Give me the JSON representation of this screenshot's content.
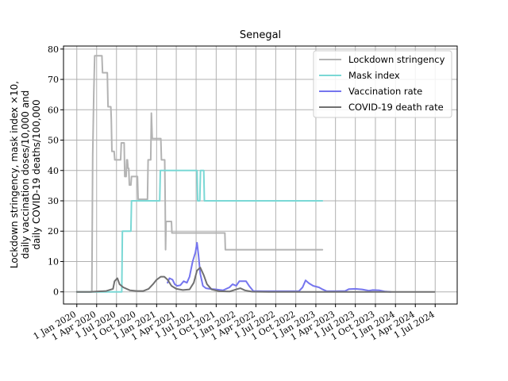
{
  "chart_data": {
    "type": "line",
    "title": "Senegal",
    "ylabel_lines": [
      "Lockdown stringency, mask index ×10,",
      "daily vaccination doses/10,000 and",
      "daily COVID-19 deaths/100,000"
    ],
    "xlabel": "",
    "ylim": [
      -4,
      81
    ],
    "xlim": [
      "2019-11-01",
      "2024-10-10"
    ],
    "yticks": [
      0,
      10,
      20,
      30,
      40,
      50,
      60,
      70,
      80
    ],
    "xticks": [
      {
        "date": "2020-01-01",
        "label": "1 Jan 2020"
      },
      {
        "date": "2020-04-01",
        "label": "1 Apr 2020"
      },
      {
        "date": "2020-07-01",
        "label": "1 Jul 2020"
      },
      {
        "date": "2020-10-01",
        "label": "1 Oct 2020"
      },
      {
        "date": "2021-01-01",
        "label": "1 Jan 2021"
      },
      {
        "date": "2021-04-01",
        "label": "1 Apr 2021"
      },
      {
        "date": "2021-07-01",
        "label": "1 Jul 2021"
      },
      {
        "date": "2021-10-01",
        "label": "1 Oct 2021"
      },
      {
        "date": "2022-01-01",
        "label": "1 Jan 2022"
      },
      {
        "date": "2022-04-01",
        "label": "1 Apr 2022"
      },
      {
        "date": "2022-07-01",
        "label": "1 Jul 2022"
      },
      {
        "date": "2022-10-01",
        "label": "1 Oct 2022"
      },
      {
        "date": "2023-01-01",
        "label": "1 Jan 2023"
      },
      {
        "date": "2023-04-01",
        "label": "1 Apr 2023"
      },
      {
        "date": "2023-07-01",
        "label": "1 Jul 2023"
      },
      {
        "date": "2023-10-01",
        "label": "1 Oct 2023"
      },
      {
        "date": "2024-01-01",
        "label": "1 Jan 2024"
      },
      {
        "date": "2024-04-01",
        "label": "1 Apr 2024"
      },
      {
        "date": "2024-07-01",
        "label": "1 Jul 2024"
      }
    ],
    "grid": true,
    "legend_position": "top-right",
    "series": [
      {
        "name": "Lockdown stringency",
        "color": "#b3b3b3",
        "step": true,
        "points": [
          [
            "2020-01-01",
            0
          ],
          [
            "2020-03-10",
            0
          ],
          [
            "2020-03-14",
            45
          ],
          [
            "2020-03-19",
            66
          ],
          [
            "2020-03-23",
            77.8
          ],
          [
            "2020-04-25",
            77.8
          ],
          [
            "2020-04-28",
            72.2
          ],
          [
            "2020-05-20",
            72.2
          ],
          [
            "2020-05-23",
            61
          ],
          [
            "2020-06-05",
            61
          ],
          [
            "2020-06-07",
            57
          ],
          [
            "2020-06-10",
            46.3
          ],
          [
            "2020-06-20",
            46.3
          ],
          [
            "2020-06-23",
            43.5
          ],
          [
            "2020-07-20",
            43.5
          ],
          [
            "2020-07-23",
            49.1
          ],
          [
            "2020-08-05",
            49.1
          ],
          [
            "2020-08-08",
            38
          ],
          [
            "2020-08-14",
            38
          ],
          [
            "2020-08-17",
            43.5
          ],
          [
            "2020-08-20",
            43.5
          ],
          [
            "2020-08-23",
            40.7
          ],
          [
            "2020-08-26",
            40.7
          ],
          [
            "2020-08-29",
            35.2
          ],
          [
            "2020-09-05",
            35.2
          ],
          [
            "2020-09-08",
            38
          ],
          [
            "2020-10-05",
            38
          ],
          [
            "2020-10-08",
            30.5
          ],
          [
            "2020-11-20",
            30.5
          ],
          [
            "2020-11-23",
            43.5
          ],
          [
            "2020-12-05",
            43.5
          ],
          [
            "2020-12-08",
            58.9
          ],
          [
            "2020-12-12",
            50.5
          ],
          [
            "2021-01-20",
            50.5
          ],
          [
            "2021-01-23",
            43.5
          ],
          [
            "2021-02-07",
            43.5
          ],
          [
            "2021-02-09",
            30
          ],
          [
            "2021-02-11",
            13.9
          ],
          [
            "2021-02-13",
            23.2
          ],
          [
            "2021-03-10",
            23.2
          ],
          [
            "2021-03-12",
            19.4
          ],
          [
            "2021-11-10",
            19.4
          ],
          [
            "2021-11-12",
            13.9
          ],
          [
            "2023-01-31",
            13.9
          ]
        ]
      },
      {
        "name": "Mask index",
        "color": "#7ad8d5",
        "step": true,
        "points": [
          [
            "2020-01-01",
            0
          ],
          [
            "2020-07-25",
            0
          ],
          [
            "2020-07-28",
            20
          ],
          [
            "2020-09-05",
            20
          ],
          [
            "2020-09-08",
            30
          ],
          [
            "2021-01-15",
            30
          ],
          [
            "2021-01-18",
            40
          ],
          [
            "2021-07-05",
            40
          ],
          [
            "2021-07-08",
            30
          ],
          [
            "2021-07-18",
            30
          ],
          [
            "2021-07-21",
            40
          ],
          [
            "2021-08-05",
            40
          ],
          [
            "2021-08-08",
            30
          ],
          [
            "2023-01-31",
            30
          ]
        ]
      },
      {
        "name": "Vaccination rate",
        "color": "#7575ee",
        "step": false,
        "points": [
          [
            "2021-02-20",
            3.0
          ],
          [
            "2021-03-01",
            4.5
          ],
          [
            "2021-03-15",
            4.0
          ],
          [
            "2021-03-25",
            2.5
          ],
          [
            "2021-04-05",
            2.0
          ],
          [
            "2021-04-20",
            2.2
          ],
          [
            "2021-05-05",
            3.5
          ],
          [
            "2021-05-20",
            3.0
          ],
          [
            "2021-06-01",
            5.0
          ],
          [
            "2021-06-15",
            10.0
          ],
          [
            "2021-06-28",
            13.0
          ],
          [
            "2021-07-05",
            16.2
          ],
          [
            "2021-07-12",
            12.0
          ],
          [
            "2021-07-20",
            6.0
          ],
          [
            "2021-08-01",
            2.0
          ],
          [
            "2021-08-15",
            1.2
          ],
          [
            "2021-09-01",
            1.0
          ],
          [
            "2021-10-01",
            0.8
          ],
          [
            "2021-11-01",
            0.5
          ],
          [
            "2021-12-01",
            1.5
          ],
          [
            "2021-12-15",
            2.5
          ],
          [
            "2022-01-01",
            2.0
          ],
          [
            "2022-01-15",
            3.5
          ],
          [
            "2022-02-15",
            3.5
          ],
          [
            "2022-03-01",
            2.0
          ],
          [
            "2022-03-20",
            0.3
          ],
          [
            "2022-05-01",
            0.2
          ],
          [
            "2022-08-01",
            0.2
          ],
          [
            "2022-10-15",
            0.2
          ],
          [
            "2022-11-01",
            1.5
          ],
          [
            "2022-11-15",
            3.8
          ],
          [
            "2022-12-01",
            2.8
          ],
          [
            "2022-12-20",
            2.0
          ],
          [
            "2023-01-15",
            1.5
          ],
          [
            "2023-02-01",
            0.8
          ],
          [
            "2023-02-20",
            0.2
          ],
          [
            "2023-04-01",
            0.2
          ],
          [
            "2023-05-15",
            0.3
          ],
          [
            "2023-06-01",
            0.9
          ],
          [
            "2023-07-01",
            1.0
          ],
          [
            "2023-08-01",
            0.8
          ],
          [
            "2023-09-01",
            0.4
          ],
          [
            "2023-09-20",
            0.6
          ],
          [
            "2023-10-20",
            0.5
          ],
          [
            "2023-11-15",
            0.1
          ],
          [
            "2023-12-10",
            0.0
          ]
        ]
      },
      {
        "name": "COVID-19 death rate",
        "color": "#707070",
        "step": false,
        "points": [
          [
            "2020-01-01",
            0
          ],
          [
            "2020-03-01",
            0
          ],
          [
            "2020-05-15",
            0.3
          ],
          [
            "2020-06-15",
            1.0
          ],
          [
            "2020-06-22",
            3.5
          ],
          [
            "2020-07-05",
            4.5
          ],
          [
            "2020-07-15",
            2.5
          ],
          [
            "2020-08-01",
            1.5
          ],
          [
            "2020-09-01",
            0.5
          ],
          [
            "2020-10-01",
            0.3
          ],
          [
            "2020-11-01",
            0.3
          ],
          [
            "2020-11-25",
            1.0
          ],
          [
            "2020-12-15",
            2.5
          ],
          [
            "2021-01-01",
            4.0
          ],
          [
            "2021-01-20",
            5.0
          ],
          [
            "2021-02-05",
            5.0
          ],
          [
            "2021-02-20",
            4.0
          ],
          [
            "2021-03-10",
            2.0
          ],
          [
            "2021-04-01",
            1.0
          ],
          [
            "2021-05-01",
            0.6
          ],
          [
            "2021-06-01",
            0.8
          ],
          [
            "2021-06-20",
            3.0
          ],
          [
            "2021-07-05",
            7.0
          ],
          [
            "2021-07-20",
            8.0
          ],
          [
            "2021-08-05",
            5.5
          ],
          [
            "2021-08-20",
            2.5
          ],
          [
            "2021-09-10",
            0.8
          ],
          [
            "2021-10-15",
            0.2
          ],
          [
            "2021-12-01",
            0.1
          ],
          [
            "2022-01-01",
            0.8
          ],
          [
            "2022-01-20",
            1.2
          ],
          [
            "2022-02-10",
            0.5
          ],
          [
            "2022-03-15",
            0.05
          ],
          [
            "2022-06-01",
            0.0
          ],
          [
            "2023-01-01",
            0.0
          ],
          [
            "2024-06-28",
            0.0
          ]
        ]
      }
    ]
  }
}
